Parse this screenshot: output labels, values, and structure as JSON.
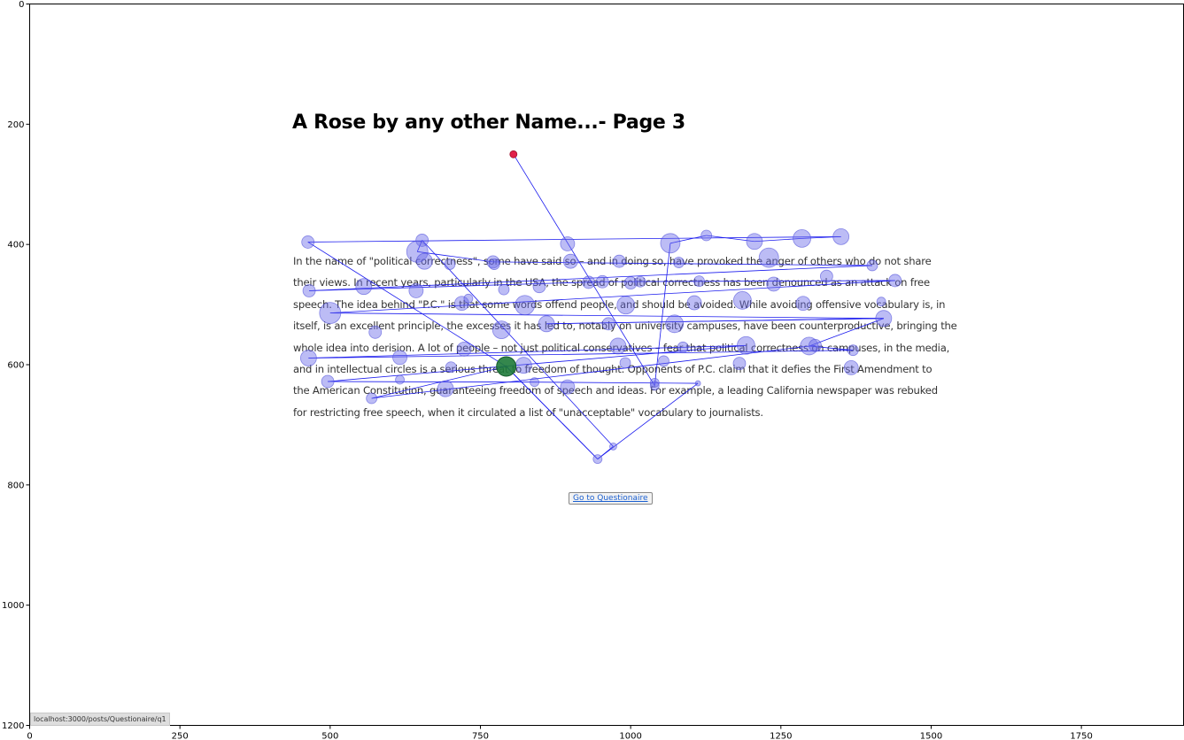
{
  "page": {
    "title": "A Rose by any other Name...- Page 3",
    "paragraph_lines": [
      "In the name of \"political correctness\", some have said so – and in doing so, have provoked the anger of others who do not share",
      "their views. In recent years, particularly in the USA, the spread of political correctness has been denounced as an attack on free",
      "speech. The idea behind \"P.C.\" is that some words offend people, and should be avoided. While avoiding offensive vocabulary is, in",
      "itself, is an excellent principle, the excesses it has led to, notably on university campuses, have been counterproductive, bringing the",
      "whole idea into derision. A lot of people – not just political conservatives – fear that political correctness on campuses, in the media,",
      "and in intellectual circles is a serious threat to freedom of thought. Opponents of P.C. claim that it defies the First Amendment to",
      "the American Constitution, guaranteeing freedom of speech and ideas. For example, a leading California newspaper was rebuked",
      "for restricting free speech, when it circulated a list of \"unacceptable\" vocabulary to journalists."
    ],
    "button_label": "Go to Questionaire",
    "status_url": "localhost:3000/posts/Questionaire/q1"
  },
  "axes": {
    "x_ticks": [
      "0",
      "250",
      "500",
      "750",
      "1000",
      "1250",
      "1500",
      "1750"
    ],
    "y_ticks": [
      "0",
      "200",
      "400",
      "600",
      "800",
      "1000",
      "1200"
    ],
    "x_range": [
      0,
      1920
    ],
    "y_range": [
      0,
      1200
    ]
  },
  "colors": {
    "fixation_fill": "#6a6ae8",
    "fixation_stroke": "#4a4ad8",
    "scanpath": "#1a1aee",
    "start_point": "#e0204a",
    "end_point": "#1e7a3a",
    "link": "#1a5fd0"
  },
  "chart_data": {
    "type": "scatter",
    "start": {
      "x": 805,
      "y": 250,
      "r": 4
    },
    "end": {
      "x": 793,
      "y": 603,
      "r": 11
    },
    "fixations": [
      {
        "x": 463,
        "y": 396,
        "r": 7
      },
      {
        "x": 653,
        "y": 393,
        "r": 7
      },
      {
        "x": 645,
        "y": 412,
        "r": 12
      },
      {
        "x": 657,
        "y": 428,
        "r": 9
      },
      {
        "x": 699,
        "y": 433,
        "r": 6
      },
      {
        "x": 771,
        "y": 429,
        "r": 7
      },
      {
        "x": 773,
        "y": 433,
        "r": 6
      },
      {
        "x": 895,
        "y": 399,
        "r": 8
      },
      {
        "x": 900,
        "y": 428,
        "r": 8
      },
      {
        "x": 981,
        "y": 428,
        "r": 7
      },
      {
        "x": 1066,
        "y": 398,
        "r": 11
      },
      {
        "x": 1126,
        "y": 385,
        "r": 6
      },
      {
        "x": 1206,
        "y": 395,
        "r": 9
      },
      {
        "x": 1285,
        "y": 390,
        "r": 10
      },
      {
        "x": 1350,
        "y": 387,
        "r": 9
      },
      {
        "x": 1080,
        "y": 430,
        "r": 6
      },
      {
        "x": 1230,
        "y": 422,
        "r": 11
      },
      {
        "x": 1402,
        "y": 435,
        "r": 6
      },
      {
        "x": 465,
        "y": 477,
        "r": 7
      },
      {
        "x": 556,
        "y": 470,
        "r": 9
      },
      {
        "x": 643,
        "y": 477,
        "r": 8
      },
      {
        "x": 789,
        "y": 475,
        "r": 6
      },
      {
        "x": 848,
        "y": 470,
        "r": 7
      },
      {
        "x": 930,
        "y": 463,
        "r": 7
      },
      {
        "x": 953,
        "y": 462,
        "r": 7
      },
      {
        "x": 1000,
        "y": 464,
        "r": 7
      },
      {
        "x": 1016,
        "y": 462,
        "r": 6
      },
      {
        "x": 1114,
        "y": 461,
        "r": 6
      },
      {
        "x": 1238,
        "y": 466,
        "r": 8
      },
      {
        "x": 1326,
        "y": 453,
        "r": 7
      },
      {
        "x": 1440,
        "y": 460,
        "r": 7
      },
      {
        "x": 500,
        "y": 514,
        "r": 12
      },
      {
        "x": 719,
        "y": 498,
        "r": 8
      },
      {
        "x": 730,
        "y": 490,
        "r": 5
      },
      {
        "x": 824,
        "y": 501,
        "r": 11
      },
      {
        "x": 992,
        "y": 501,
        "r": 10
      },
      {
        "x": 1106,
        "y": 497,
        "r": 8
      },
      {
        "x": 1186,
        "y": 493,
        "r": 10
      },
      {
        "x": 1287,
        "y": 498,
        "r": 8
      },
      {
        "x": 1417,
        "y": 495,
        "r": 5
      },
      {
        "x": 1421,
        "y": 523,
        "r": 9
      },
      {
        "x": 575,
        "y": 546,
        "r": 7
      },
      {
        "x": 785,
        "y": 542,
        "r": 10
      },
      {
        "x": 860,
        "y": 532,
        "r": 9
      },
      {
        "x": 963,
        "y": 532,
        "r": 7
      },
      {
        "x": 1073,
        "y": 532,
        "r": 10
      },
      {
        "x": 464,
        "y": 589,
        "r": 9
      },
      {
        "x": 723,
        "y": 574,
        "r": 8
      },
      {
        "x": 979,
        "y": 569,
        "r": 9
      },
      {
        "x": 1087,
        "y": 571,
        "r": 6
      },
      {
        "x": 1192,
        "y": 568,
        "r": 10
      },
      {
        "x": 1297,
        "y": 569,
        "r": 10
      },
      {
        "x": 1307,
        "y": 568,
        "r": 7
      },
      {
        "x": 1370,
        "y": 576,
        "r": 6
      },
      {
        "x": 616,
        "y": 588,
        "r": 8
      },
      {
        "x": 701,
        "y": 604,
        "r": 6
      },
      {
        "x": 822,
        "y": 601,
        "r": 9
      },
      {
        "x": 991,
        "y": 597,
        "r": 6
      },
      {
        "x": 1055,
        "y": 594,
        "r": 6
      },
      {
        "x": 1181,
        "y": 598,
        "r": 7
      },
      {
        "x": 1367,
        "y": 605,
        "r": 8
      },
      {
        "x": 496,
        "y": 628,
        "r": 7
      },
      {
        "x": 616,
        "y": 625,
        "r": 5
      },
      {
        "x": 692,
        "y": 640,
        "r": 9
      },
      {
        "x": 840,
        "y": 629,
        "r": 5
      },
      {
        "x": 895,
        "y": 637,
        "r": 8
      },
      {
        "x": 1040,
        "y": 630,
        "r": 5
      },
      {
        "x": 1040,
        "y": 635,
        "r": 5
      },
      {
        "x": 1112,
        "y": 631,
        "r": 3
      },
      {
        "x": 569,
        "y": 656,
        "r": 6
      },
      {
        "x": 971,
        "y": 736,
        "r": 4
      },
      {
        "x": 945,
        "y": 757,
        "r": 5
      }
    ],
    "scanpath_order": [
      [
        805,
        250
      ],
      [
        1040,
        635
      ],
      [
        1066,
        398
      ],
      [
        1126,
        385
      ],
      [
        1206,
        395
      ],
      [
        1285,
        390
      ],
      [
        1350,
        387
      ],
      [
        463,
        396
      ],
      [
        793,
        603
      ],
      [
        945,
        757
      ],
      [
        971,
        736
      ],
      [
        653,
        393
      ],
      [
        645,
        412
      ],
      [
        771,
        429
      ],
      [
        1402,
        435
      ],
      [
        465,
        477
      ],
      [
        953,
        462
      ],
      [
        1440,
        460
      ],
      [
        500,
        514
      ],
      [
        1421,
        523
      ],
      [
        860,
        532
      ],
      [
        1421,
        523
      ],
      [
        1297,
        569
      ],
      [
        1370,
        576
      ],
      [
        464,
        589
      ],
      [
        1192,
        568
      ],
      [
        496,
        628
      ],
      [
        840,
        629
      ],
      [
        1112,
        631
      ],
      [
        945,
        757
      ],
      [
        793,
        603
      ],
      [
        569,
        656
      ],
      [
        1307,
        568
      ]
    ]
  }
}
